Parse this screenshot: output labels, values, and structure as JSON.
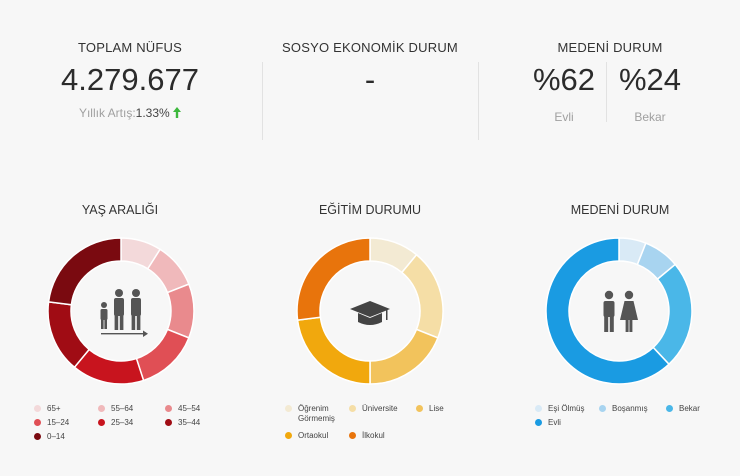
{
  "stats": {
    "population": {
      "title": "TOPLAM NÜFUS",
      "value": "4.279.677",
      "growth_label": "Yıllık Artış:",
      "growth_value": "1.33%"
    },
    "socio": {
      "title": "SOSYO EKONOMİK DURUM",
      "value": "-"
    },
    "marital": {
      "title": "MEDENİ DURUM",
      "married_pct": "%62",
      "married_label": "Evli",
      "single_pct": "%24",
      "single_label": "Bekar"
    }
  },
  "chart_data": [
    {
      "type": "pie",
      "title": "YAŞ ARALIĞI",
      "icon": "family-icon",
      "categories": [
        "65+",
        "55-64",
        "45-54",
        "15-24",
        "25-34",
        "35-44",
        "0-14"
      ],
      "legend_labels": [
        "65+",
        "55–64",
        "45–54",
        "15–24",
        "25–34",
        "35–44",
        "0–14"
      ],
      "values": [
        9,
        10,
        12,
        14,
        16,
        16,
        23
      ],
      "colors": [
        "#f3d9da",
        "#f0b9bb",
        "#e98a8d",
        "#e04f55",
        "#c8141e",
        "#a00c14",
        "#7a0a10"
      ]
    },
    {
      "type": "pie",
      "title": "EĞİTİM DURUMU",
      "icon": "graduation-cap-icon",
      "categories": [
        "Öğrenim Görmemiş",
        "Üniversite",
        "Lise",
        "Ortaokul",
        "İlkokul"
      ],
      "legend_labels": [
        "Öğrenim\nGörmemiş",
        "Üniversite",
        "Lise",
        "Ortaokul",
        "İlkokul"
      ],
      "values": [
        11,
        20,
        19,
        23,
        27
      ],
      "colors": [
        "#f3ead3",
        "#f5dea6",
        "#f2c35c",
        "#f1a80d",
        "#e8740c"
      ]
    },
    {
      "type": "pie",
      "title": "MEDENİ DURUM",
      "icon": "couple-icon",
      "categories": [
        "Eşi Ölmüş",
        "Boşanmış",
        "Bekar",
        "Evli"
      ],
      "legend_labels": [
        "Eşi Ölmüş",
        "Boşanmış",
        "Bekar",
        "Evli"
      ],
      "values": [
        6,
        8,
        24,
        62
      ],
      "colors": [
        "#d9eaf6",
        "#a8d4f0",
        "#4ab7e8",
        "#1a9be2"
      ]
    }
  ],
  "colors": {
    "growth_arrow": "#3db83d",
    "divider": "#e2e2e2"
  }
}
